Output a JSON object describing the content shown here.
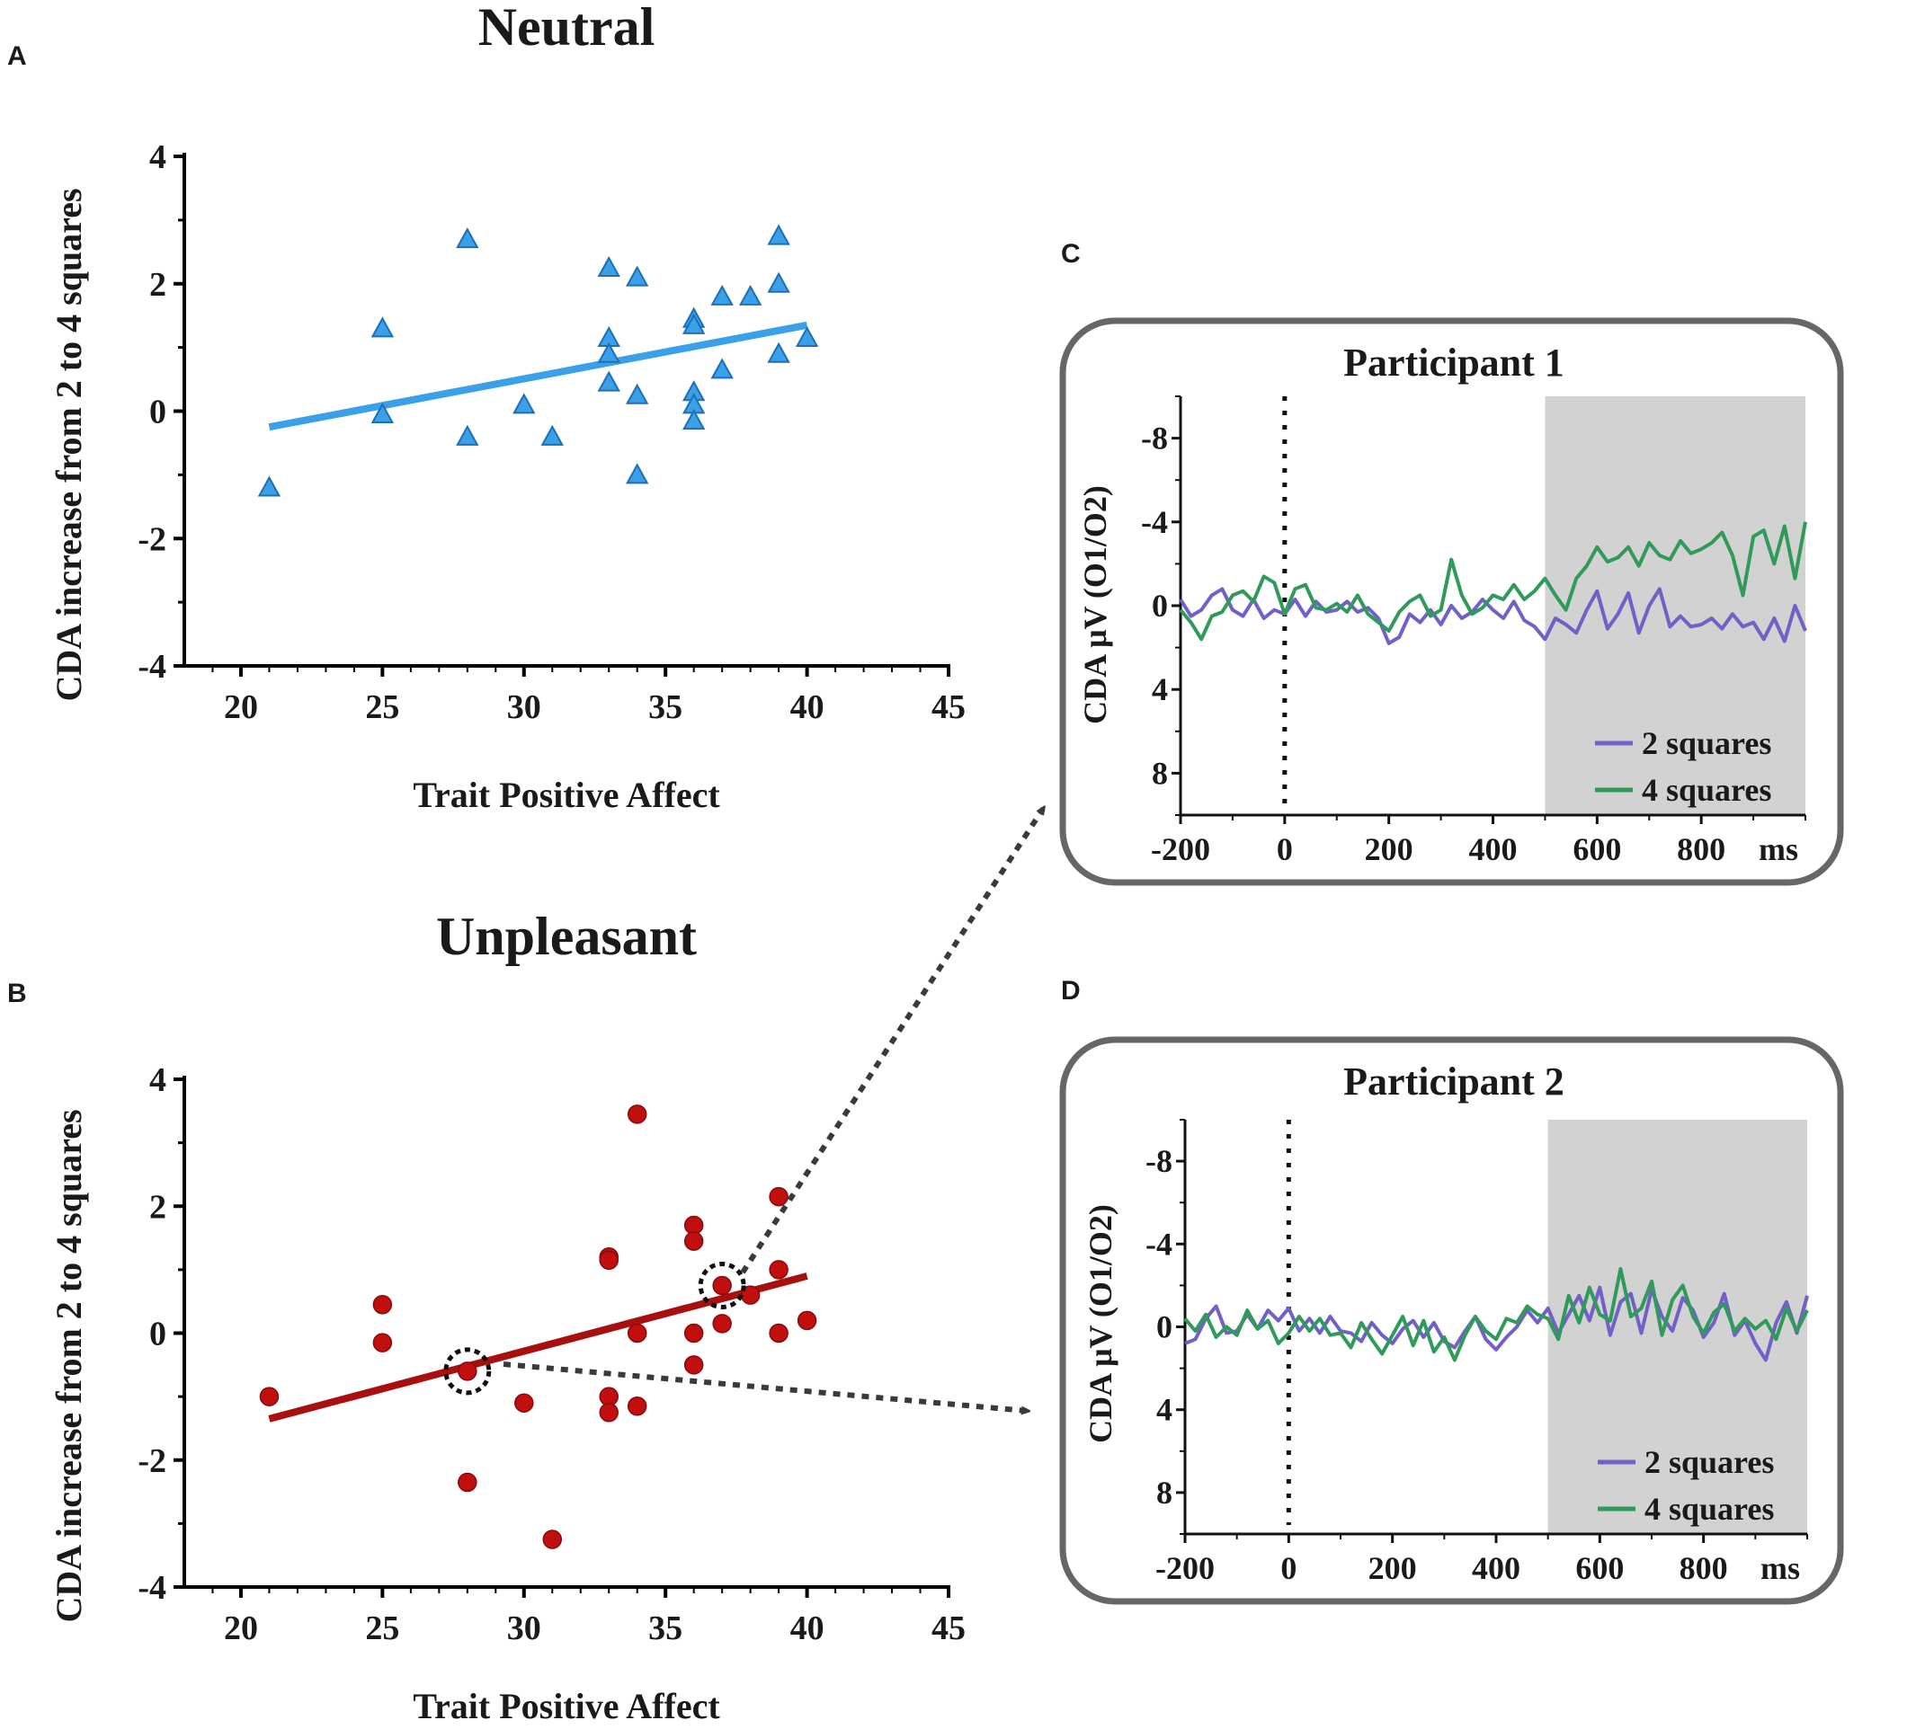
{
  "colors": {
    "neutral": "#3aa0e8",
    "neutral_stroke": "#1c6fb8",
    "unpleasant": "#c10f0f",
    "unpleasant_line": "#a8100f",
    "two_squares": "#7060c8",
    "four_squares": "#2f9a5a",
    "shade": "#d2d2d2",
    "frame": "#666666"
  },
  "chart_data": [
    {
      "panel": "A",
      "type": "scatter",
      "marker": "triangle",
      "title": "Neutral",
      "xlabel": "Trait Positive Affect",
      "ylabel": "CDA increase from 2 to 4 squares",
      "xlim": [
        18,
        45
      ],
      "ylim": [
        -4,
        4
      ],
      "xticks": [
        "20",
        "25",
        "30",
        "35",
        "40",
        "45"
      ],
      "yticks": [
        "-4",
        "-2",
        "0",
        "2",
        "4"
      ],
      "points": [
        [
          21,
          -1.2
        ],
        [
          25,
          1.3
        ],
        [
          25,
          -0.05
        ],
        [
          28,
          2.7
        ],
        [
          28,
          -0.4
        ],
        [
          30,
          0.1
        ],
        [
          31,
          -0.4
        ],
        [
          33,
          2.25
        ],
        [
          33,
          1.15
        ],
        [
          33,
          0.9
        ],
        [
          33,
          0.45
        ],
        [
          34,
          2.1
        ],
        [
          34,
          0.25
        ],
        [
          34,
          -1.0
        ],
        [
          36,
          1.45
        ],
        [
          36,
          1.35
        ],
        [
          36,
          0.3
        ],
        [
          36,
          0.1
        ],
        [
          36,
          -0.15
        ],
        [
          37,
          1.8
        ],
        [
          37,
          0.65
        ],
        [
          38,
          1.8
        ],
        [
          39,
          2.75
        ],
        [
          39,
          2.0
        ],
        [
          39,
          0.9
        ],
        [
          40,
          1.15
        ]
      ],
      "fit_line": {
        "x": [
          21,
          40
        ],
        "y": [
          -0.25,
          1.35
        ]
      }
    },
    {
      "panel": "B",
      "type": "scatter",
      "marker": "circle",
      "title": "Unpleasant",
      "xlabel": "Trait Positive Affect",
      "ylabel": "CDA increase from 2 to 4 squares",
      "xlim": [
        18,
        45
      ],
      "ylim": [
        -4,
        4
      ],
      "xticks": [
        "20",
        "25",
        "30",
        "35",
        "40",
        "45"
      ],
      "yticks": [
        "-4",
        "-2",
        "0",
        "2",
        "4"
      ],
      "points": [
        [
          21,
          -1.0
        ],
        [
          25,
          0.45
        ],
        [
          25,
          -0.15
        ],
        [
          28,
          -0.6
        ],
        [
          28,
          -2.35
        ],
        [
          30,
          -1.1
        ],
        [
          31,
          -3.25
        ],
        [
          33,
          1.2
        ],
        [
          33,
          1.15
        ],
        [
          33,
          -1.0
        ],
        [
          33,
          -1.25
        ],
        [
          34,
          3.45
        ],
        [
          34,
          0.0
        ],
        [
          34,
          -1.15
        ],
        [
          36,
          1.7
        ],
        [
          36,
          1.45
        ],
        [
          36,
          0.0
        ],
        [
          36,
          -0.5
        ],
        [
          37,
          0.75
        ],
        [
          37,
          0.15
        ],
        [
          38,
          0.6
        ],
        [
          39,
          2.15
        ],
        [
          39,
          1.0
        ],
        [
          39,
          0.0
        ],
        [
          40,
          0.2
        ]
      ],
      "highlighted": [
        [
          28,
          -0.6
        ],
        [
          37,
          0.75
        ]
      ],
      "fit_line": {
        "x": [
          21,
          40
        ],
        "y": [
          -1.35,
          0.9
        ]
      }
    },
    {
      "panel": "C",
      "type": "line",
      "title": "Participant 1",
      "ylabel": "CDA μV (O1/O2)",
      "xlim": [
        -200,
        1000
      ],
      "ylim": [
        -10,
        10
      ],
      "xticks": [
        "-200",
        "0",
        "200",
        "400",
        "600",
        "800",
        "ms"
      ],
      "yticks": [
        "-8",
        "-4",
        "0",
        "4",
        "8"
      ],
      "shaded_range": [
        500,
        1000
      ],
      "onset_marker": 0,
      "series": [
        {
          "name": "2 squares",
          "x": [
            -200,
            -180,
            -160,
            -140,
            -120,
            -100,
            -80,
            -60,
            -40,
            -20,
            0,
            20,
            40,
            60,
            80,
            100,
            120,
            140,
            160,
            180,
            200,
            220,
            240,
            260,
            280,
            300,
            320,
            340,
            360,
            380,
            400,
            420,
            440,
            460,
            480,
            500,
            520,
            540,
            560,
            580,
            600,
            620,
            640,
            660,
            680,
            700,
            720,
            740,
            760,
            780,
            800,
            820,
            840,
            860,
            880,
            900,
            920,
            940,
            960,
            980,
            1000
          ],
          "values": [
            -0.3,
            0.5,
            0.2,
            -0.5,
            -0.8,
            0.2,
            0.5,
            -0.3,
            0.6,
            0.2,
            0.4,
            -0.3,
            0.5,
            -0.2,
            0.3,
            0.2,
            -0.2,
            0.3,
            0.1,
            0.6,
            1.8,
            1.5,
            0.4,
            0.8,
            0.2,
            0.9,
            0.0,
            0.6,
            0.3,
            -0.3,
            0.2,
            0.6,
            -0.2,
            0.7,
            1.0,
            1.6,
            0.6,
            0.9,
            1.3,
            0.2,
            -0.7,
            1.1,
            0.4,
            -0.6,
            1.3,
            0.0,
            -0.8,
            1.0,
            0.5,
            1.0,
            0.9,
            0.6,
            1.1,
            0.4,
            1.0,
            0.8,
            1.6,
            0.6,
            1.7,
            0.0,
            1.2
          ]
        },
        {
          "name": "4 squares",
          "x": [
            -200,
            -180,
            -160,
            -140,
            -120,
            -100,
            -80,
            -60,
            -40,
            -20,
            0,
            20,
            40,
            60,
            80,
            100,
            120,
            140,
            160,
            180,
            200,
            220,
            240,
            260,
            280,
            300,
            320,
            340,
            360,
            380,
            400,
            420,
            440,
            460,
            480,
            500,
            520,
            540,
            560,
            580,
            600,
            620,
            640,
            660,
            680,
            700,
            720,
            740,
            760,
            780,
            800,
            820,
            840,
            860,
            880,
            900,
            920,
            940,
            960,
            980,
            1000
          ],
          "values": [
            0.2,
            0.8,
            1.6,
            0.5,
            0.3,
            -0.5,
            -0.7,
            -0.2,
            -1.4,
            -1.1,
            0.4,
            -0.8,
            -1.0,
            0.1,
            0.2,
            -0.1,
            0.3,
            -0.5,
            0.4,
            0.8,
            1.2,
            0.3,
            -0.2,
            -0.5,
            0.5,
            0.2,
            -2.2,
            -0.5,
            0.4,
            0.1,
            -0.5,
            -0.3,
            -1.0,
            -0.3,
            -0.7,
            -1.3,
            -0.5,
            0.2,
            -1.3,
            -1.9,
            -2.8,
            -2.1,
            -2.3,
            -2.8,
            -1.9,
            -3.0,
            -2.4,
            -2.2,
            -3.1,
            -2.5,
            -2.7,
            -3.0,
            -3.5,
            -2.4,
            -0.5,
            -3.3,
            -3.6,
            -2.0,
            -3.8,
            -1.3,
            -4.0
          ]
        }
      ]
    },
    {
      "panel": "D",
      "type": "line",
      "title": "Participant 2",
      "ylabel": "CDA μV (O1/O2)",
      "xlim": [
        -200,
        1000
      ],
      "ylim": [
        -10,
        10
      ],
      "xticks": [
        "-200",
        "0",
        "200",
        "400",
        "600",
        "800",
        "ms"
      ],
      "yticks": [
        "-8",
        "-4",
        "0",
        "4",
        "8"
      ],
      "shaded_range": [
        500,
        1000
      ],
      "onset_marker": 0,
      "series": [
        {
          "name": "2 squares",
          "x": [
            -200,
            -180,
            -160,
            -140,
            -120,
            -100,
            -80,
            -60,
            -40,
            -20,
            0,
            20,
            40,
            60,
            80,
            100,
            120,
            140,
            160,
            180,
            200,
            220,
            240,
            260,
            280,
            300,
            320,
            340,
            360,
            380,
            400,
            420,
            440,
            460,
            480,
            500,
            520,
            540,
            560,
            580,
            600,
            620,
            640,
            660,
            680,
            700,
            720,
            740,
            760,
            780,
            800,
            820,
            840,
            860,
            880,
            900,
            920,
            940,
            960,
            980,
            1000
          ],
          "values": [
            0.8,
            0.6,
            -0.4,
            -1.0,
            0.3,
            0.2,
            -0.6,
            0.1,
            -0.8,
            -0.3,
            -0.9,
            0.2,
            -0.4,
            0.3,
            -0.5,
            0.2,
            0.3,
            0.7,
            -0.2,
            0.4,
            0.8,
            0.1,
            -0.3,
            0.5,
            -0.2,
            0.7,
            1.0,
            0.2,
            -0.5,
            0.6,
            1.1,
            0.5,
            0.0,
            -0.8,
            -0.2,
            -0.9,
            0.3,
            -0.6,
            -1.5,
            -0.3,
            -1.9,
            0.4,
            -1.2,
            -1.6,
            0.3,
            -1.8,
            -0.5,
            0.2,
            -1.4,
            -0.8,
            0.5,
            -0.2,
            -1.6,
            0.4,
            -0.3,
            0.8,
            1.6,
            -0.2,
            -1.2,
            0.3,
            -1.5
          ]
        },
        {
          "name": "4 squares",
          "x": [
            -200,
            -180,
            -160,
            -140,
            -120,
            -100,
            -80,
            -60,
            -40,
            -20,
            0,
            20,
            40,
            60,
            80,
            100,
            120,
            140,
            160,
            180,
            200,
            220,
            240,
            260,
            280,
            300,
            320,
            340,
            360,
            380,
            400,
            420,
            440,
            460,
            480,
            500,
            520,
            540,
            560,
            580,
            600,
            620,
            640,
            660,
            680,
            700,
            720,
            740,
            760,
            780,
            800,
            820,
            840,
            860,
            880,
            900,
            920,
            940,
            960,
            980,
            1000
          ],
          "values": [
            -0.4,
            0.2,
            -0.6,
            0.5,
            0.0,
            0.4,
            -0.8,
            0.1,
            -0.3,
            0.8,
            0.3,
            -0.5,
            0.2,
            -0.4,
            0.4,
            0.3,
            1.0,
            -0.2,
            0.6,
            1.3,
            0.4,
            -0.5,
            0.9,
            -0.3,
            1.2,
            0.5,
            1.6,
            0.4,
            -0.5,
            0.2,
            0.6,
            -0.4,
            -0.2,
            -1.0,
            -0.6,
            -0.4,
            0.6,
            -1.5,
            -0.2,
            -1.9,
            -0.6,
            -0.3,
            -2.8,
            -0.5,
            -0.9,
            -2.2,
            0.4,
            -1.3,
            -2.0,
            -0.5,
            0.3,
            -0.7,
            -1.1,
            0.2,
            -0.4,
            0.1,
            -0.3,
            0.6,
            -0.9,
            0.2,
            -0.8
          ]
        }
      ]
    }
  ]
}
